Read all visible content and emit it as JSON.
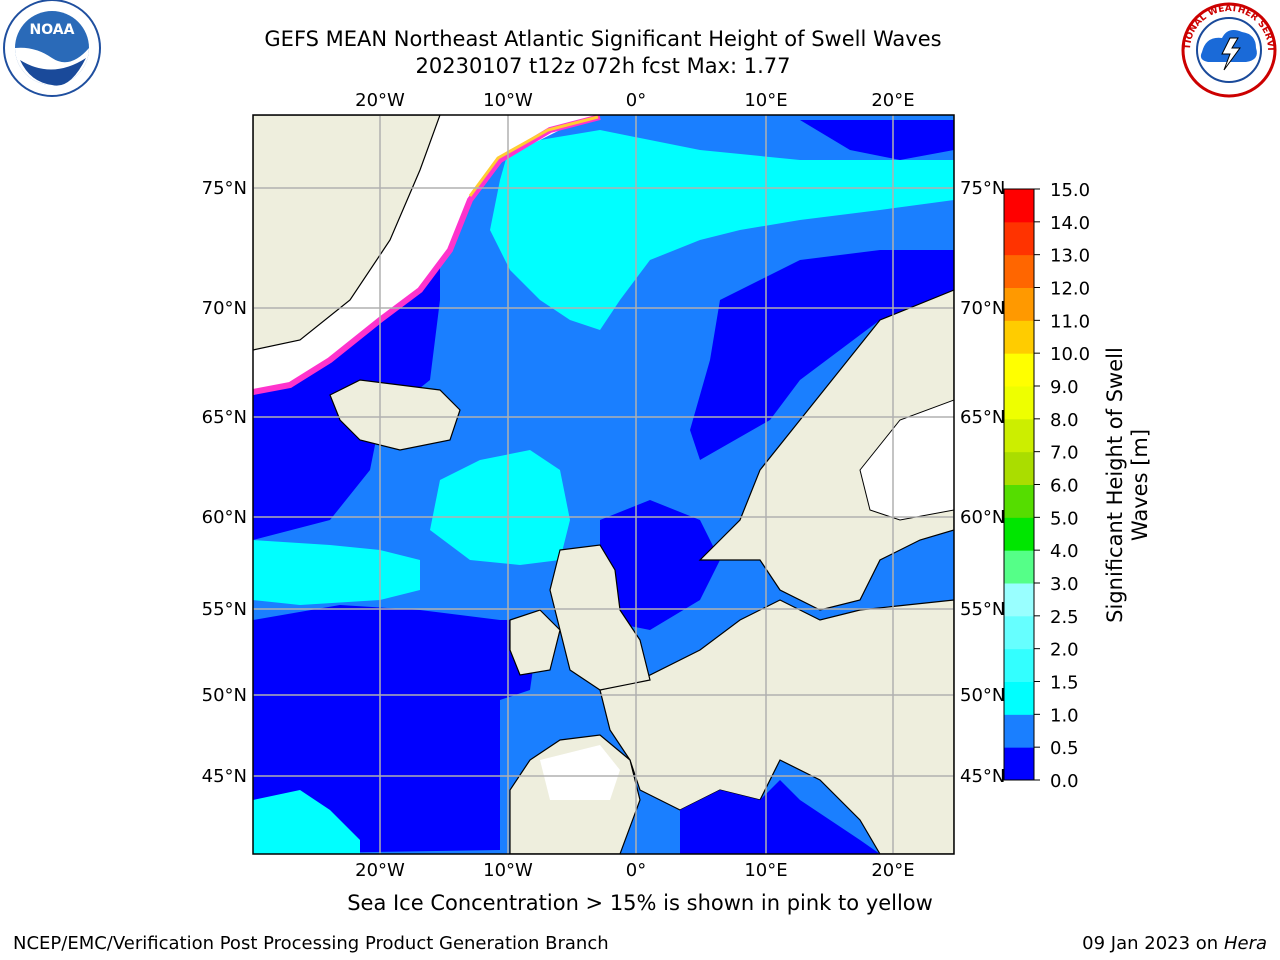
{
  "title": {
    "line1": "GEFS MEAN Northeast Atlantic Significant Height of Swell Waves",
    "line2": "20230107 t12z 072h fcst    Max: 1.77"
  },
  "logos": {
    "left": {
      "name": "noaa-logo",
      "text": "NOAA"
    },
    "right": {
      "name": "nws-logo",
      "text": "NATIONAL WEATHER SERVICE"
    }
  },
  "map": {
    "lon_labels": [
      "20°W",
      "10°W",
      "0°",
      "10°E",
      "20°E"
    ],
    "lat_labels": [
      "75°N",
      "70°N",
      "65°N",
      "60°N",
      "55°N",
      "50°N",
      "45°N"
    ]
  },
  "colorbar": {
    "title": "Significant Height of Swell Waves [m]",
    "ticks": [
      "0.0",
      "0.5",
      "1.0",
      "1.5",
      "2.0",
      "2.5",
      "3.0",
      "4.0",
      "5.0",
      "6.0",
      "7.0",
      "8.0",
      "9.0",
      "10.0",
      "11.0",
      "12.0",
      "13.0",
      "14.0",
      "15.0"
    ],
    "colors": [
      "#0000ff",
      "#1a7fff",
      "#00ffff",
      "#33ffff",
      "#66ffff",
      "#99ffff",
      "#55ff88",
      "#00e600",
      "#55dd00",
      "#aadd00",
      "#ccee00",
      "#eeff00",
      "#ffff00",
      "#ffcc00",
      "#ff9900",
      "#ff6600",
      "#ff3300",
      "#ff0000"
    ]
  },
  "caption": "Sea Ice Concentration > 15% is shown in pink to yellow",
  "footer": {
    "left": "NCEP/EMC/Verification Post Processing Product Generation Branch",
    "right_date": "09 Jan 2023 on ",
    "right_host": "Hera"
  }
}
